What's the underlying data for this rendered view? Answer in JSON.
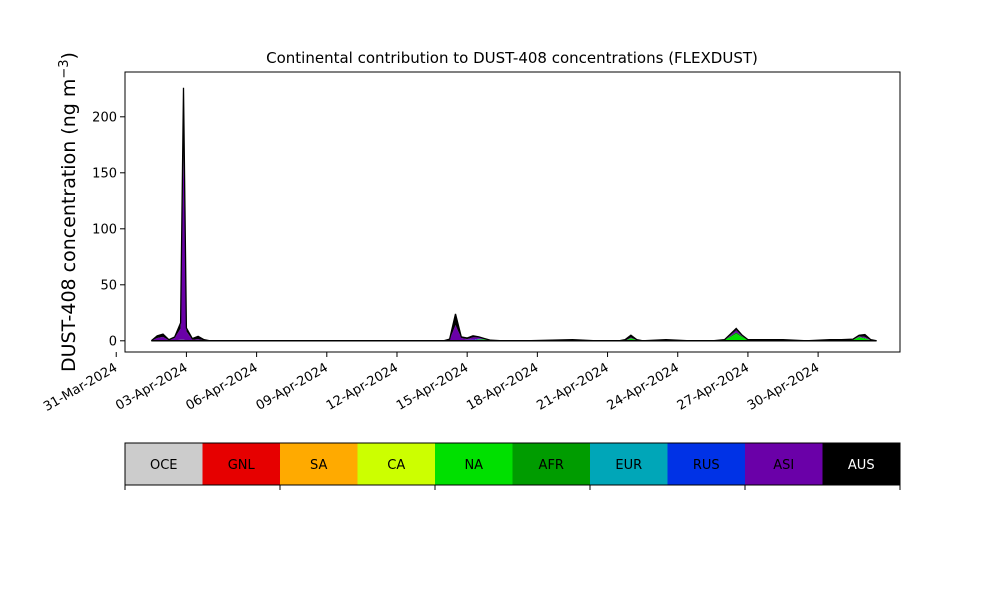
{
  "chart_data": {
    "type": "area",
    "title": "Continental contribution to DUST-408 concentrations (FLEXDUST)",
    "ylabel": "DUST-408 concentration (ng m",
    "ylabel_exp": "−3",
    "ylabel_close": ")",
    "xlabel": "",
    "ylim": [
      -10,
      240
    ],
    "yticks": [
      0,
      50,
      100,
      150,
      200
    ],
    "xlim": [
      "2024-03-31T09:00",
      "2024-05-03T12:00"
    ],
    "xticks": [
      "31-Mar-2024",
      "03-Apr-2024",
      "06-Apr-2024",
      "09-Apr-2024",
      "12-Apr-2024",
      "15-Apr-2024",
      "18-Apr-2024",
      "21-Apr-2024",
      "24-Apr-2024",
      "27-Apr-2024",
      "30-Apr-2024"
    ],
    "grid": false,
    "stacked": true,
    "x": [
      "2024-04-01T12:00",
      "2024-04-01T18:00",
      "2024-04-02T00:00",
      "2024-04-02T06:00",
      "2024-04-02T12:00",
      "2024-04-02T18:00",
      "2024-04-02T21:00",
      "2024-04-03T00:00",
      "2024-04-03T06:00",
      "2024-04-03T12:00",
      "2024-04-03T18:00",
      "2024-04-04T00:00",
      "2024-04-04T12:00",
      "2024-04-05T12:00",
      "2024-04-08T12:00",
      "2024-04-11T12:00",
      "2024-04-13T12:00",
      "2024-04-14T00:00",
      "2024-04-14T06:00",
      "2024-04-14T12:00",
      "2024-04-14T18:00",
      "2024-04-15T00:00",
      "2024-04-15T06:00",
      "2024-04-15T12:00",
      "2024-04-15T18:00",
      "2024-04-16T00:00",
      "2024-04-16T12:00",
      "2024-04-17T12:00",
      "2024-04-19T12:00",
      "2024-04-20T12:00",
      "2024-04-21T12:00",
      "2024-04-21T18:00",
      "2024-04-22T00:00",
      "2024-04-22T06:00",
      "2024-04-22T12:00",
      "2024-04-23T12:00",
      "2024-04-24T12:00",
      "2024-04-25T12:00",
      "2024-04-26T00:00",
      "2024-04-26T06:00",
      "2024-04-26T12:00",
      "2024-04-26T18:00",
      "2024-04-27T00:00",
      "2024-04-27T12:00",
      "2024-04-28T12:00",
      "2024-04-29T12:00",
      "2024-04-30T12:00",
      "2024-05-01T00:00",
      "2024-05-01T12:00",
      "2024-05-01T18:00",
      "2024-05-02T00:00",
      "2024-05-02T06:00",
      "2024-05-02T12:00"
    ],
    "series": [
      {
        "name": "NA",
        "color": "#00e000",
        "values": [
          0,
          0,
          0,
          0,
          0.5,
          1,
          1,
          0.5,
          0,
          0,
          0,
          0,
          0,
          0,
          0,
          0,
          0,
          0,
          0,
          0,
          0.5,
          0.5,
          0.5,
          1,
          1,
          0.5,
          0,
          0,
          0,
          0,
          0,
          0,
          2,
          0.5,
          0,
          0,
          0,
          0,
          1,
          3,
          6,
          3,
          1,
          0,
          0,
          0,
          0,
          0,
          1,
          3,
          2,
          0.5,
          0
        ]
      },
      {
        "name": "AFR",
        "color": "#009c00",
        "values": [
          0,
          0,
          0,
          0,
          0,
          0,
          0,
          0,
          0,
          0,
          0,
          0,
          0,
          0,
          0,
          0,
          0,
          0,
          0,
          0,
          0,
          0,
          0,
          0.5,
          0.5,
          0,
          0,
          0,
          0,
          0,
          0,
          0,
          0.5,
          0,
          0,
          0,
          0,
          0,
          0,
          1,
          1.5,
          1,
          0,
          0,
          0,
          0,
          0,
          0,
          0,
          0.5,
          0.5,
          0,
          0
        ]
      },
      {
        "name": "RUS",
        "color": "#0032e6",
        "values": [
          0,
          0.5,
          0.5,
          0,
          0,
          0,
          0,
          0,
          0.5,
          0.5,
          0,
          0,
          0,
          0,
          0,
          0,
          0,
          0,
          0,
          0,
          0,
          0.5,
          0.5,
          0.5,
          0,
          0,
          0,
          0,
          0.5,
          0,
          0,
          0,
          0,
          0,
          0,
          0.5,
          0,
          0,
          0,
          0,
          0,
          0,
          0,
          0.5,
          0.5,
          0,
          0.5,
          0.5,
          0,
          0,
          0,
          0,
          0
        ]
      },
      {
        "name": "ASI",
        "color": "#6a00a8",
        "values": [
          0,
          2,
          3,
          0.5,
          2,
          10,
          170,
          8,
          0.5,
          1,
          0.5,
          0,
          0,
          0,
          0,
          0,
          0,
          0,
          1,
          14,
          2,
          0.5,
          2,
          1,
          0.5,
          0,
          0,
          0,
          0,
          0,
          0,
          0,
          0.5,
          0,
          0,
          0,
          0,
          0,
          0,
          1,
          2,
          0.5,
          0,
          0,
          0,
          0,
          0,
          0,
          0,
          0.5,
          1,
          0,
          0
        ]
      },
      {
        "name": "AUS",
        "color": "#000000",
        "values": [
          0,
          2,
          2.5,
          0.5,
          1,
          5,
          55,
          3,
          1,
          2.5,
          0.5,
          0,
          0,
          0,
          0,
          0,
          0,
          0,
          0.5,
          10,
          1,
          1,
          1.5,
          0.5,
          0,
          0,
          0,
          0,
          0.5,
          0,
          0,
          1,
          2,
          0.5,
          0,
          0.5,
          0,
          0,
          0,
          1,
          1.5,
          0.5,
          0,
          0.5,
          0.5,
          0,
          0.5,
          0.5,
          0.5,
          1,
          2,
          0.5,
          0
        ]
      }
    ],
    "legend": {
      "placement": "below",
      "entries": [
        {
          "name": "OCE",
          "color": "#cccccc",
          "text_color": "#000000"
        },
        {
          "name": "GNL",
          "color": "#e60000",
          "text_color": "#000000"
        },
        {
          "name": "SA",
          "color": "#ffaa00",
          "text_color": "#000000"
        },
        {
          "name": "CA",
          "color": "#ccff00",
          "text_color": "#000000"
        },
        {
          "name": "NA",
          "color": "#00e000",
          "text_color": "#000000"
        },
        {
          "name": "AFR",
          "color": "#009c00",
          "text_color": "#000000"
        },
        {
          "name": "EUR",
          "color": "#00a6b8",
          "text_color": "#000000"
        },
        {
          "name": "RUS",
          "color": "#0032e6",
          "text_color": "#000000"
        },
        {
          "name": "ASI",
          "color": "#6a00a8",
          "text_color": "#000000"
        },
        {
          "name": "AUS",
          "color": "#000000",
          "text_color": "#ffffff"
        }
      ]
    }
  }
}
